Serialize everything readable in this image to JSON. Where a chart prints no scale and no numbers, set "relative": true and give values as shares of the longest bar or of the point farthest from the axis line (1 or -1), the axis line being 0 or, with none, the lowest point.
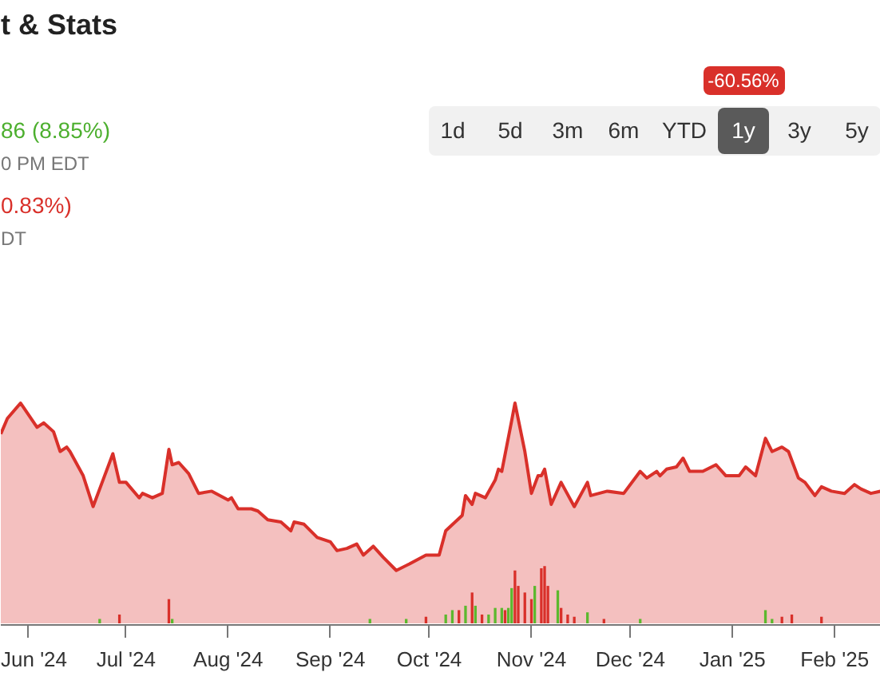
{
  "chart_data": {
    "type": "area",
    "title": "t & Stats",
    "relative": true,
    "xlim": [
      "2024-05-24",
      "2025-02-15"
    ],
    "xticks": [
      {
        "value": "2024-06-01",
        "label": "Jun '24"
      },
      {
        "value": "2024-07-01",
        "label": "Jul '24"
      },
      {
        "value": "2024-08-01",
        "label": "Aug '24"
      },
      {
        "value": "2024-09-01",
        "label": "Sep '24"
      },
      {
        "value": "2024-10-01",
        "label": "Oct '24"
      },
      {
        "value": "2024-11-01",
        "label": "Nov '24"
      },
      {
        "value": "2024-12-01",
        "label": "Dec '24"
      },
      {
        "value": "2025-01-01",
        "label": "Jan '25"
      },
      {
        "value": "2025-02-01",
        "label": "Feb '25"
      }
    ],
    "series": [
      {
        "color": "#d9302a",
        "x": [
          "2024-05-24",
          "2024-05-26",
          "2024-05-30",
          "2024-06-04",
          "2024-06-06",
          "2024-06-09",
          "2024-06-11",
          "2024-06-13",
          "2024-06-14",
          "2024-06-18",
          "2024-06-21",
          "2024-06-24",
          "2024-06-27",
          "2024-06-29",
          "2024-07-01",
          "2024-07-05",
          "2024-07-06",
          "2024-07-09",
          "2024-07-12",
          "2024-07-14",
          "2024-07-15",
          "2024-07-17",
          "2024-07-20",
          "2024-07-23",
          "2024-07-27",
          "2024-08-01",
          "2024-08-02",
          "2024-08-04",
          "2024-08-08",
          "2024-08-10",
          "2024-08-13",
          "2024-08-17",
          "2024-08-20",
          "2024-08-21",
          "2024-08-24",
          "2024-08-28",
          "2024-09-01",
          "2024-09-03",
          "2024-09-06",
          "2024-09-09",
          "2024-09-11",
          "2024-09-14",
          "2024-09-17",
          "2024-09-21",
          "2024-09-25",
          "2024-09-30",
          "2024-10-04",
          "2024-10-06",
          "2024-10-11",
          "2024-10-12",
          "2024-10-14",
          "2024-10-15",
          "2024-10-18",
          "2024-10-21",
          "2024-10-22",
          "2024-10-23",
          "2024-10-26",
          "2024-10-27",
          "2024-10-30",
          "2024-11-01",
          "2024-11-03",
          "2024-11-04",
          "2024-11-05",
          "2024-11-07",
          "2024-11-10",
          "2024-11-14",
          "2024-11-18",
          "2024-11-19",
          "2024-11-24",
          "2024-11-29",
          "2024-12-04",
          "2024-12-06",
          "2024-12-09",
          "2024-12-10",
          "2024-12-12",
          "2024-12-15",
          "2024-12-17",
          "2024-12-19",
          "2024-12-23",
          "2024-12-27",
          "2024-12-30",
          "2025-01-03",
          "2025-01-05",
          "2025-01-08",
          "2025-01-11",
          "2025-01-13",
          "2025-01-16",
          "2025-01-18",
          "2025-01-21",
          "2025-01-23",
          "2025-01-26",
          "2025-01-28",
          "2025-01-31",
          "2025-02-04",
          "2025-02-07",
          "2025-02-09",
          "2025-02-12",
          "2025-02-15"
        ],
        "values": [
          0.86,
          0.93,
          1.0,
          0.89,
          0.91,
          0.87,
          0.78,
          0.8,
          0.78,
          0.67,
          0.53,
          0.65,
          0.77,
          0.64,
          0.64,
          0.57,
          0.59,
          0.57,
          0.59,
          0.79,
          0.72,
          0.73,
          0.68,
          0.59,
          0.6,
          0.56,
          0.57,
          0.52,
          0.52,
          0.51,
          0.47,
          0.46,
          0.42,
          0.46,
          0.45,
          0.39,
          0.37,
          0.33,
          0.34,
          0.36,
          0.31,
          0.35,
          0.3,
          0.24,
          0.27,
          0.31,
          0.31,
          0.42,
          0.49,
          0.58,
          0.54,
          0.59,
          0.57,
          0.65,
          0.7,
          0.69,
          0.92,
          1.0,
          0.78,
          0.59,
          0.67,
          0.67,
          0.7,
          0.54,
          0.64,
          0.53,
          0.64,
          0.58,
          0.6,
          0.59,
          0.69,
          0.66,
          0.69,
          0.67,
          0.7,
          0.71,
          0.75,
          0.69,
          0.69,
          0.72,
          0.67,
          0.67,
          0.71,
          0.67,
          0.84,
          0.78,
          0.8,
          0.78,
          0.66,
          0.64,
          0.58,
          0.62,
          0.6,
          0.59,
          0.63,
          0.61,
          0.59,
          0.6
        ]
      },
      {
        "type": "bar",
        "x": [
          "2024-06-23",
          "2024-06-29",
          "2024-07-14",
          "2024-07-15",
          "2024-09-13",
          "2024-09-24",
          "2024-09-30",
          "2024-10-06",
          "2024-10-08",
          "2024-10-10",
          "2024-10-12",
          "2024-10-14",
          "2024-10-15",
          "2024-10-17",
          "2024-10-19",
          "2024-10-21",
          "2024-10-23",
          "2024-10-24",
          "2024-10-25",
          "2024-10-26",
          "2024-10-27",
          "2024-10-28",
          "2024-10-30",
          "2024-11-01",
          "2024-11-02",
          "2024-11-04",
          "2024-11-05",
          "2024-11-06",
          "2024-11-09",
          "2024-11-10",
          "2024-11-12",
          "2024-11-14",
          "2024-11-18",
          "2024-11-23",
          "2024-12-04",
          "2025-01-11",
          "2025-01-13",
          "2025-01-16",
          "2025-01-19",
          "2025-01-28"
        ],
        "values": [
          0.02,
          0.04,
          0.11,
          0.02,
          0.02,
          0.02,
          0.03,
          0.04,
          0.06,
          0.06,
          0.08,
          0.14,
          0.08,
          0.04,
          0.04,
          0.07,
          0.07,
          0.06,
          0.07,
          0.16,
          0.24,
          0.17,
          0.14,
          0.11,
          0.17,
          0.25,
          0.26,
          0.17,
          0.15,
          0.07,
          0.04,
          0.03,
          0.05,
          0.02,
          0.02,
          0.06,
          0.02,
          0.03,
          0.04,
          0.03
        ],
        "colors": [
          "#5cb82e",
          "#d9302a",
          "#d9302a",
          "#5cb82e",
          "#5cb82e",
          "#5cb82e",
          "#d9302a",
          "#5cb82e",
          "#5cb82e",
          "#d9302a",
          "#5cb82e",
          "#d9302a",
          "#5cb82e",
          "#d9302a",
          "#5cb82e",
          "#5cb82e",
          "#5cb82e",
          "#d9302a",
          "#5cb82e",
          "#5cb82e",
          "#d9302a",
          "#d9302a",
          "#d9302a",
          "#d9302a",
          "#5cb82e",
          "#d9302a",
          "#d9302a",
          "#d9302a",
          "#5cb82e",
          "#d9302a",
          "#d9302a",
          "#d9302a",
          "#5cb82e",
          "#d9302a",
          "#5cb82e",
          "#5cb82e",
          "#5cb82e",
          "#d9302a",
          "#d9302a",
          "#d9302a"
        ]
      }
    ],
    "annotations": [
      "86 (8.85%)",
      "0 PM EDT",
      "0.83%)",
      "DT",
      "1d",
      "5d",
      "3m",
      "6m",
      "YTD",
      "1y",
      "3y",
      "5y",
      "-60.56%"
    ]
  }
}
